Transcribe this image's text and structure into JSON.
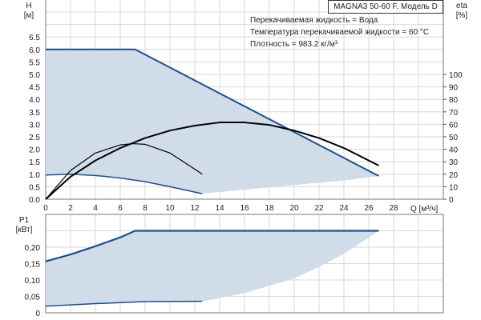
{
  "chart_data": [
    {
      "type": "line",
      "title": "MAGNA3 50-60 F, Модель D",
      "annotations": [
        "Перекачиваемая жидкость = Вода",
        "Температура перекачиваемой жидкости = 60 °C",
        "Плотность = 983.2 кг/м³"
      ],
      "xlabel": "Q [м³/ч]",
      "ylabel_left": [
        "H",
        "[м]"
      ],
      "ylabel_right": [
        "eta",
        "[%]"
      ],
      "xlim": [
        0,
        32
      ],
      "ylim_left": [
        0,
        8
      ],
      "ylim_right": [
        0,
        160
      ],
      "x_ticks": [
        "0",
        "2",
        "4",
        "6",
        "8",
        "10",
        "12",
        "14",
        "16",
        "18",
        "20",
        "22",
        "24",
        "26",
        "28"
      ],
      "y_ticks_left": [
        "0.0",
        "0.5",
        "1.0",
        "1.5",
        "2.0",
        "2.5",
        "3.0",
        "3.5",
        "4.0",
        "4.5",
        "5.0",
        "5.5",
        "6.0",
        "6.5"
      ],
      "y_ticks_right": [
        "0",
        "10",
        "20",
        "30",
        "40",
        "50",
        "60",
        "70",
        "80",
        "90",
        "100"
      ],
      "grid": true,
      "series": [
        {
          "role": "max-head",
          "axis": "left",
          "color": "#1f4f8a",
          "x": [
            0,
            7.2,
            26.8
          ],
          "y": [
            6.0,
            6.0,
            0.93
          ]
        },
        {
          "role": "min-head",
          "axis": "left",
          "color": "#1f4f8a",
          "x": [
            0,
            2,
            4,
            6,
            8,
            10,
            12.6
          ],
          "y": [
            0.97,
            1.0,
            0.95,
            0.85,
            0.7,
            0.5,
            0.22
          ]
        },
        {
          "role": "area-lower-boundary",
          "axis": "left",
          "x": [
            12.6,
            16,
            20,
            24,
            26.8
          ],
          "y": [
            0.22,
            0.38,
            0.57,
            0.75,
            0.93
          ]
        },
        {
          "role": "eta-max",
          "axis": "right",
          "color": "#000000",
          "x": [
            0,
            2,
            4,
            6,
            8,
            10,
            12,
            14,
            16,
            18,
            20,
            22,
            24,
            26.8
          ],
          "y": [
            0,
            18,
            31,
            41,
            49,
            55,
            59,
            61.5,
            61.5,
            59.5,
            55,
            49,
            41,
            27
          ]
        },
        {
          "role": "eta-min",
          "axis": "right",
          "color": "#000000",
          "x": [
            0,
            2,
            4,
            6,
            7,
            8,
            10,
            12,
            12.6
          ],
          "y": [
            0,
            23,
            37,
            43.5,
            44.5,
            44,
            37,
            24,
            20
          ]
        }
      ]
    },
    {
      "type": "line",
      "xlabel": "",
      "ylabel": [
        "P1",
        "[кВт]"
      ],
      "xlim": [
        0,
        32
      ],
      "ylim": [
        0,
        0.3
      ],
      "y_ticks": [
        "0",
        "0,05",
        "0,10",
        "0,15",
        "0,20",
        ""
      ],
      "grid": true,
      "series": [
        {
          "role": "max-power",
          "color": "#1f4f8a",
          "x": [
            0,
            2,
            4,
            6,
            7.2,
            26.8
          ],
          "y": [
            0.157,
            0.178,
            0.203,
            0.23,
            0.25,
            0.25
          ]
        },
        {
          "role": "min-power",
          "color": "#1f4f8a",
          "x": [
            0,
            4,
            8,
            12.6
          ],
          "y": [
            0.02,
            0.028,
            0.034,
            0.035
          ]
        },
        {
          "role": "area-lower-boundary",
          "x": [
            12.6,
            16,
            20,
            22,
            24,
            26.8
          ],
          "y": [
            0.035,
            0.06,
            0.105,
            0.14,
            0.18,
            0.25
          ]
        }
      ]
    }
  ],
  "colors": {
    "curve": "#1f4f8a",
    "area": "#d0dce8",
    "grid": "#d8d8d8",
    "eta": "#000000"
  }
}
